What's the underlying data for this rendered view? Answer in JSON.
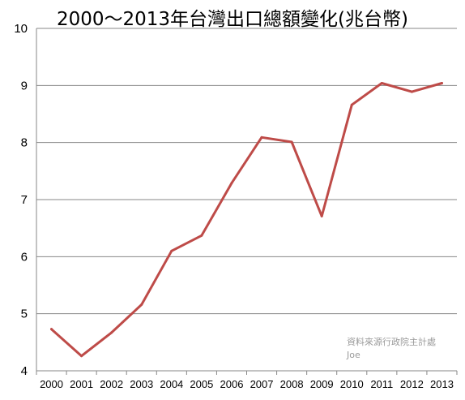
{
  "chart_data": {
    "type": "line",
    "title": "2000～2013年台灣出口總額變化(兆台幣)",
    "xlabel": "",
    "ylabel": "",
    "categories": [
      "2000",
      "2001",
      "2002",
      "2003",
      "2004",
      "2005",
      "2006",
      "2007",
      "2008",
      "2009",
      "2010",
      "2011",
      "2012",
      "2013"
    ],
    "series": [
      {
        "values": [
          4.73,
          4.26,
          4.67,
          5.16,
          6.1,
          6.37,
          7.29,
          8.09,
          8.01,
          6.71,
          8.66,
          9.04,
          8.89,
          9.04
        ]
      }
    ],
    "ylim": [
      4,
      10
    ],
    "yticks": [
      4,
      5,
      6,
      7,
      8,
      9,
      10
    ],
    "grid": "horizontal",
    "line_color": "#be4b48",
    "annotations": [
      "資料來源行政院主計處",
      "Joe"
    ]
  }
}
